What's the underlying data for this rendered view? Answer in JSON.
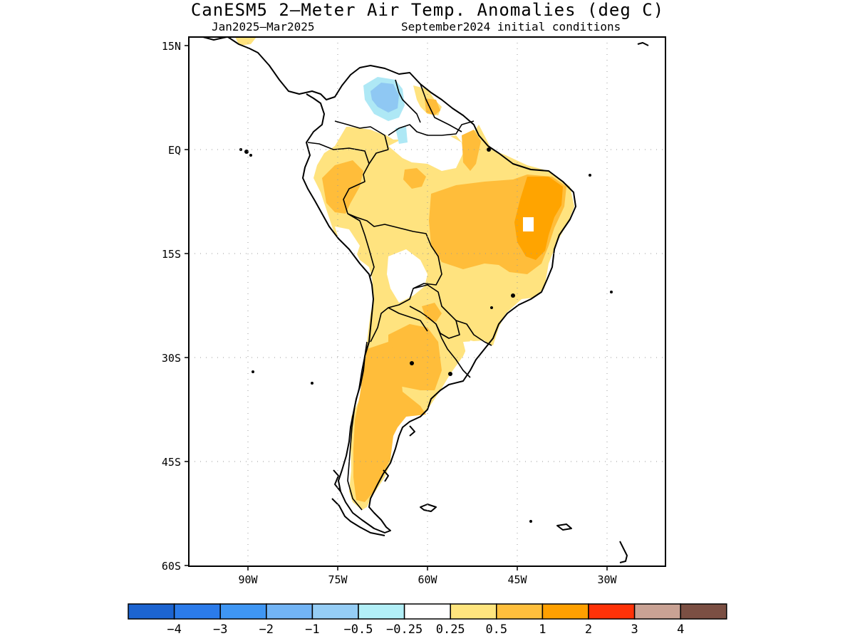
{
  "map": {
    "title": "CanESM5 2—Meter Air Temp. Anomalies (deg C)",
    "period": "Jan2025—Mar2025",
    "init": "September2024 initial conditions",
    "lat_labels": [
      "15N",
      "EQ",
      "15S",
      "30S",
      "45S",
      "60S"
    ],
    "lon_labels": [
      "90W",
      "75W",
      "60W",
      "45W",
      "30W"
    ],
    "colors": {
      "ocean": "#ffffff",
      "neutral": "#ffffff",
      "light_warm": "#ffe37f",
      "warm": "#ffbd3a",
      "orange": "#ffa400",
      "light_cool": "#aee8f5",
      "cool": "#8fc8f3",
      "coast": "#000000"
    }
  },
  "colorbar": {
    "colors": [
      "#1c64d1",
      "#2b7bea",
      "#3f96f3",
      "#72b4f5",
      "#95cdf5",
      "#b2eff7",
      "#ffffff",
      "#ffe57e",
      "#ffbf3c",
      "#ffa000",
      "#ff3208",
      "#c9a294",
      "#7b4f43"
    ],
    "labels": [
      "−4",
      "−3",
      "−2",
      "−1",
      "−0.5",
      "−0.25",
      "0.25",
      "0.5",
      "1",
      "2",
      "3",
      "4"
    ]
  }
}
